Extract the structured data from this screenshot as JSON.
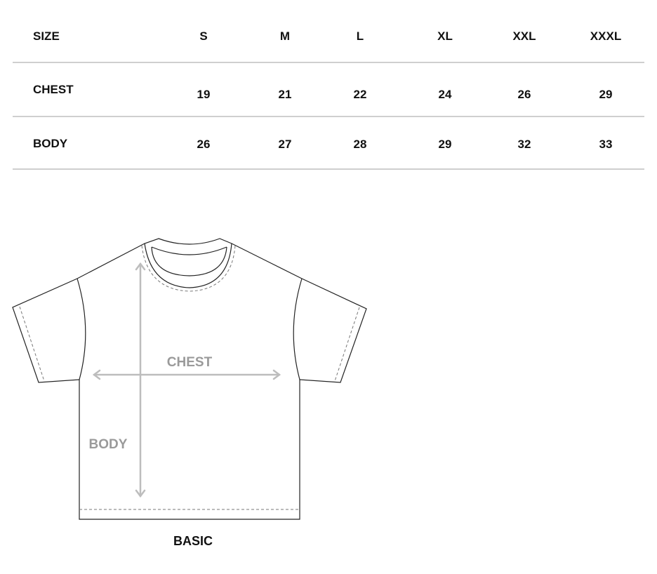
{
  "table": {
    "header_label": "SIZE",
    "sizes": [
      "S",
      "M",
      "L",
      "XL",
      "XXL",
      "XXXL"
    ],
    "rows": [
      {
        "label": "CHEST",
        "values": [
          "19",
          "21",
          "22",
          "24",
          "26",
          "29"
        ]
      },
      {
        "label": "BODY",
        "values": [
          "26",
          "27",
          "28",
          "29",
          "32",
          "33"
        ]
      }
    ]
  },
  "diagram": {
    "chest_label": "CHEST",
    "body_label": "BODY",
    "caption": "BASIC",
    "arrow_color": "#bdbdbd",
    "label_color": "#9a9a9a"
  }
}
